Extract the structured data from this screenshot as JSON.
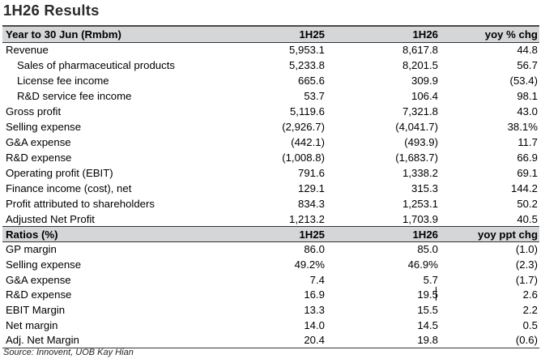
{
  "title": "1H26 Results",
  "results": {
    "header": {
      "label": "Year to 30 Jun (Rmbm)",
      "c1": "1H25",
      "c2": "1H26",
      "c3": "yoy % chg"
    },
    "rows": [
      {
        "label": "Revenue",
        "c1": "5,953.1",
        "c2": "8,617.8",
        "c3": "44.8"
      },
      {
        "label": "Sales of pharmaceutical products",
        "c1": "5,233.8",
        "c2": "8,201.5",
        "c3": "56.7"
      },
      {
        "label": "License fee income",
        "c1": "665.6",
        "c2": "309.9",
        "c3": "(53.4)"
      },
      {
        "label": "R&D service fee income",
        "c1": "53.7",
        "c2": "106.4",
        "c3": "98.1"
      },
      {
        "label": "Gross profit",
        "c1": "5,119.6",
        "c2": "7,321.8",
        "c3": "43.0"
      },
      {
        "label": "Selling expense",
        "c1": "(2,926.7)",
        "c2": "(4,041.7)",
        "c3": "38.1%"
      },
      {
        "label": "G&A expense",
        "c1": "(442.1)",
        "c2": "(493.9)",
        "c3": "11.7"
      },
      {
        "label": "R&D expense",
        "c1": "(1,008.8)",
        "c2": "(1,683.7)",
        "c3": "66.9"
      },
      {
        "label": "Operating profit (EBIT)",
        "c1": "791.6",
        "c2": "1,338.2",
        "c3": "69.1"
      },
      {
        "label": "Finance income (cost), net",
        "c1": "129.1",
        "c2": "315.3",
        "c3": "144.2"
      },
      {
        "label": "Profit attributed to shareholders",
        "c1": "834.3",
        "c2": "1,253.1",
        "c3": "50.2"
      },
      {
        "label": "Adjusted Net Profit",
        "c1": "1,213.2",
        "c2": "1,703.9",
        "c3": "40.5"
      }
    ]
  },
  "ratios": {
    "header": {
      "label": "Ratios (%)",
      "c1": "1H25",
      "c2": "1H26",
      "c3": "yoy ppt chg"
    },
    "rows": [
      {
        "label": "GP margin",
        "c1": "86.0",
        "c2": "85.0",
        "c3": "(1.0)"
      },
      {
        "label": "Selling expense",
        "c1": "49.2%",
        "c2": "46.9%",
        "c3": "(2.3)"
      },
      {
        "label": "G&A expense",
        "c1": "7.4",
        "c2": "5.7",
        "c3": "(1.7)"
      },
      {
        "label": "R&D expense",
        "c1": "16.9",
        "c2": "19.5",
        "c3": "2.6"
      },
      {
        "label": "EBIT Margin",
        "c1": "13.3",
        "c2": "15.5",
        "c3": "2.2"
      },
      {
        "label": "Net margin",
        "c1": "14.0",
        "c2": "14.5",
        "c3": "0.5"
      },
      {
        "label": "Adj. Net Margin",
        "c1": "20.4",
        "c2": "19.8",
        "c3": "(0.6)"
      }
    ]
  },
  "source": "Source: Innovent, UOB Kay Hian"
}
